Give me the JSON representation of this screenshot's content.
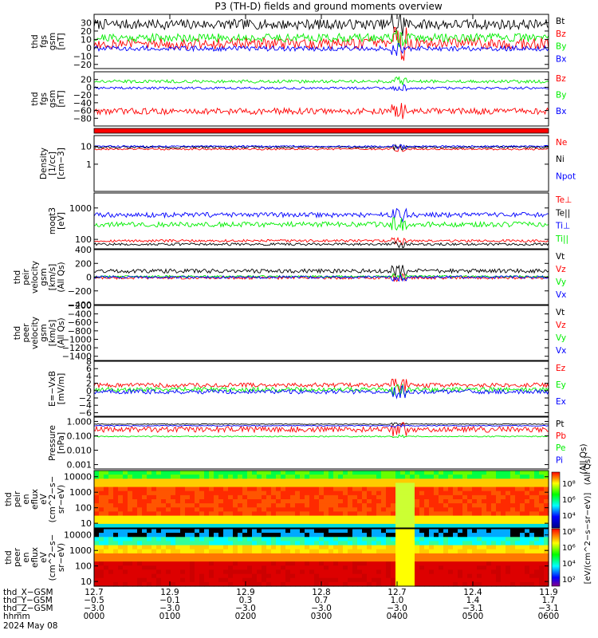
{
  "title": "P3 (TH-D) fields and ground moments overview",
  "footer_date": "2024 May 08",
  "colors": {
    "black": "#000000",
    "red": "#ff0000",
    "green": "#00ee00",
    "blue": "#0000ff"
  },
  "chart_data": [
    {
      "id": "p_fgs",
      "type": "line",
      "ylabel": [
        "thd",
        "fgs",
        "gsm",
        "[nT]"
      ],
      "ylim": [
        -25,
        40
      ],
      "yticks": [
        30,
        20,
        10,
        0,
        -10,
        -20
      ],
      "ytick_labels": [
        "30",
        "20",
        "10",
        "0",
        "−10",
        "−20"
      ],
      "series": [
        {
          "name": "Bt",
          "color": "black",
          "base": 28,
          "noise": 6
        },
        {
          "name": "Bz",
          "color": "red",
          "base": 5,
          "noise": 7
        },
        {
          "name": "By",
          "color": "green",
          "base": 12,
          "noise": 5
        },
        {
          "name": "Bx",
          "color": "blue",
          "base": -1,
          "noise": 3
        }
      ]
    },
    {
      "id": "p_fgs_dsl",
      "type": "line",
      "ylabel": [
        "thd",
        "fgs",
        "gsm",
        "[nT]"
      ],
      "ylim": [
        -100,
        40
      ],
      "yticks": [
        20,
        0,
        -20,
        -40,
        -60,
        -80
      ],
      "ytick_labels": [
        "20",
        "0",
        "−20",
        "−40",
        "−60",
        "−80"
      ],
      "series": [
        {
          "name": "Bz",
          "color": "red",
          "base": -62,
          "noise": 8
        },
        {
          "name": "By",
          "color": "green",
          "base": 15,
          "noise": 4
        },
        {
          "name": "Bx",
          "color": "blue",
          "base": -2,
          "noise": 3
        }
      ]
    },
    {
      "id": "p_density",
      "type": "line",
      "scale": "log",
      "ylabel": [
        "Density",
        "[1/cc]",
        "[cm−3]"
      ],
      "ylim": [
        0.03,
        40
      ],
      "yticks": [
        10,
        1
      ],
      "ytick_labels": [
        "10",
        "1"
      ],
      "series": [
        {
          "name": "Ne",
          "color": "red",
          "base": 7,
          "noise": 0.05
        },
        {
          "name": "Ni",
          "color": "black",
          "base": 9,
          "noise": 0.06
        },
        {
          "name": "Npot",
          "color": "blue",
          "base": 10,
          "noise": 0.05
        }
      ]
    },
    {
      "id": "p_temp",
      "type": "line",
      "scale": "log",
      "ylabel": [
        "moqt3",
        "[eV]"
      ],
      "ylim": [
        50,
        3000
      ],
      "yticks": [
        1000,
        100
      ],
      "ytick_labels": [
        "1000",
        "100"
      ],
      "series": [
        {
          "name": "Te⊥",
          "color": "red",
          "base": 90,
          "noise": 0.04
        },
        {
          "name": "Te||",
          "color": "black",
          "base": 70,
          "noise": 0.04
        },
        {
          "name": "Ti⊥",
          "color": "blue",
          "base": 600,
          "noise": 0.08
        },
        {
          "name": "Ti||",
          "color": "green",
          "base": 300,
          "noise": 0.08
        }
      ]
    },
    {
      "id": "p_pv",
      "type": "line",
      "ylabel": [
        "thd",
        "peir",
        "velocity",
        "gsm",
        "[km/s]",
        "(All Qs)"
      ],
      "ylim": [
        -400,
        400
      ],
      "yticks": [
        400,
        200,
        0,
        -200,
        -400
      ],
      "ytick_labels": [
        "400",
        "200",
        "0",
        "−200",
        "−400"
      ],
      "series": [
        {
          "name": "Vt",
          "color": "black",
          "base": 90,
          "noise": 30
        },
        {
          "name": "Vz",
          "color": "red",
          "base": -10,
          "noise": 20
        },
        {
          "name": "Vy",
          "color": "green",
          "base": 10,
          "noise": 15
        },
        {
          "name": "Vx",
          "color": "blue",
          "base": 0,
          "noise": 20
        }
      ]
    },
    {
      "id": "p_ev",
      "type": "line",
      "ylabel": [
        "thd",
        "peer",
        "velocity",
        "gsm",
        "[km/s]",
        "(All Qs)"
      ],
      "ylim": [
        -1500,
        -200
      ],
      "yticks": [
        -200,
        -400,
        -600,
        -800,
        -1000,
        -1200,
        -1400
      ],
      "ytick_labels": [
        "−200",
        "−400",
        "−600",
        "−800",
        "−1000",
        "−1200",
        "−1400"
      ],
      "series": [
        {
          "name": "Vt",
          "color": "black"
        },
        {
          "name": "Vz",
          "color": "red"
        },
        {
          "name": "Vy",
          "color": "green"
        },
        {
          "name": "Vx",
          "color": "blue"
        }
      ]
    },
    {
      "id": "p_e",
      "type": "line",
      "ylabel": [
        "E=−VxB",
        "[mV/m]"
      ],
      "ylim": [
        -7,
        8
      ],
      "yticks": [
        8,
        6,
        4,
        2,
        0,
        -2,
        -4,
        -6
      ],
      "ytick_labels": [
        "8",
        "6",
        "4",
        "2",
        "0",
        "−2",
        "−4",
        "−6"
      ],
      "series": [
        {
          "name": "Ez",
          "color": "red",
          "base": 1.5,
          "noise": 0.6
        },
        {
          "name": "Ey",
          "color": "green",
          "base": 0.3,
          "noise": 0.6
        },
        {
          "name": "Ex",
          "color": "blue",
          "base": -0.3,
          "noise": 0.6
        }
      ]
    },
    {
      "id": "p_press",
      "type": "line",
      "scale": "log",
      "ylabel": [
        "Pressure",
        "[nPa]"
      ],
      "ylim": [
        0.0005,
        2
      ],
      "yticks": [
        1,
        0.1,
        0.01,
        0.001
      ],
      "ytick_labels": [
        "1.000",
        "0.100",
        "0.010",
        "0.001"
      ],
      "side_label": "(All Qs)",
      "series": [
        {
          "name": "Pt",
          "color": "black",
          "base": 0.65,
          "noise": 0.03
        },
        {
          "name": "Pb",
          "color": "red",
          "base": 0.28,
          "noise": 0.2
        },
        {
          "name": "Pe",
          "color": "green",
          "base": 0.09,
          "noise": 0.04
        },
        {
          "name": "Pi",
          "color": "blue",
          "base": 0.5,
          "noise": 0.03
        }
      ]
    },
    {
      "id": "p_spec_i",
      "type": "heatmap",
      "scale": "log",
      "ylabel": [
        "thd",
        "peir",
        "en",
        "eflux",
        "eV",
        "(cm^2−s−",
        "sr−eV)"
      ],
      "ylim": [
        5,
        25000
      ],
      "yticks": [
        10000,
        1000,
        100,
        10
      ],
      "ytick_labels": [
        "10000",
        "1000",
        "100",
        "10"
      ]
    },
    {
      "id": "p_spec_e",
      "type": "heatmap",
      "scale": "log",
      "ylabel": [
        "thd",
        "peer",
        "en",
        "eflux",
        "eV",
        "(cm^2−s−",
        "sr−eV)"
      ],
      "ylim": [
        5,
        25000
      ],
      "yticks": [
        10000,
        1000,
        100,
        10
      ],
      "ytick_labels": [
        "10000",
        "1000",
        "100",
        "10"
      ]
    }
  ],
  "colorbar": {
    "label": "[eV/(cm^2−s−sr−eV)]",
    "upper_ticks": [
      "10⁸",
      "10⁶",
      "10⁴"
    ],
    "lower_ticks": [
      "10⁸",
      "10⁶",
      "10⁴",
      "10²"
    ],
    "all_qs": "(All Qs)"
  },
  "x_axis": {
    "rows": [
      {
        "label": "thd_X−GSM",
        "values": [
          "12.7",
          "12.9",
          "12.9",
          "12.8",
          "12.7",
          "12.4",
          "11.9"
        ]
      },
      {
        "label": "thd_Y−GSM",
        "values": [
          "−0.5",
          "−0.1",
          "0.3",
          "0.7",
          "1.0",
          "1.4",
          "1.7"
        ]
      },
      {
        "label": "thd_Z−GSM",
        "values": [
          "−3.0",
          "−3.0",
          "−3.0",
          "−3.0",
          "−3.0",
          "−3.1",
          "−3.1"
        ]
      },
      {
        "label": "hhmm",
        "values": [
          "0000",
          "0100",
          "0200",
          "0300",
          "0400",
          "0500",
          "0600"
        ]
      }
    ]
  }
}
